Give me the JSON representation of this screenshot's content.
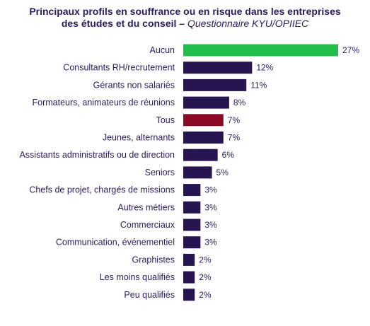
{
  "chart_data": {
    "type": "bar",
    "orientation": "horizontal",
    "title_line1": "Principaux profils en souffrance ou en risque dans les entreprises",
    "title_line2": "des études et du conseil – ",
    "title_source": "Questionnaire KYU/OPIIEC",
    "categories": [
      "Aucun",
      "Consultants RH/recrutement",
      "Gérants non salariés",
      "Formateurs, animateurs de réunions",
      "Tous",
      "Jeunes, alternants",
      "Assistants administratifs ou de direction",
      "Seniors",
      "Chefs de projet, chargés de missions",
      "Autres métiers",
      "Commerciaux",
      "Communication, événementiel",
      "Graphistes",
      "Les moins qualifiés",
      "Peu qualifiés"
    ],
    "values": [
      27,
      12,
      11,
      8,
      7,
      7,
      6,
      5,
      3,
      3,
      3,
      3,
      2,
      2,
      2
    ],
    "value_labels": [
      "27%",
      "12%",
      "11%",
      "8%",
      "7%",
      "7%",
      "6%",
      "5%",
      "3%",
      "3%",
      "3%",
      "3%",
      "2%",
      "2%",
      "2%"
    ],
    "bar_colors": [
      "#1fbf4a",
      "#261550",
      "#261550",
      "#261550",
      "#8b0a26",
      "#261550",
      "#261550",
      "#261550",
      "#261550",
      "#261550",
      "#261550",
      "#261550",
      "#261550",
      "#261550",
      "#261550"
    ],
    "xlim": [
      0,
      27
    ],
    "grid": false,
    "legend": "none"
  }
}
